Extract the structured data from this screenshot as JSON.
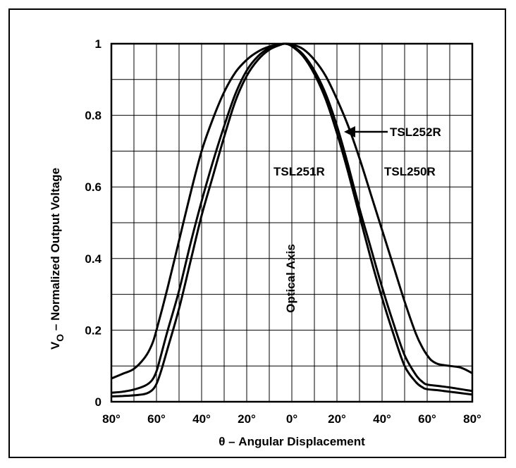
{
  "chart_data": {
    "type": "line",
    "xlabel": "θ – Angular Displacement",
    "ylabel_main": "V",
    "ylabel_sub": "O",
    "ylabel_rest": " – Normalized Output Voltage",
    "xlim": [
      -80,
      80
    ],
    "ylim": [
      0,
      1
    ],
    "x_ticks": [
      -80,
      -60,
      -40,
      -20,
      0,
      20,
      40,
      60,
      80
    ],
    "x_tick_labels": [
      "80°",
      "60°",
      "40°",
      "20°",
      "0°",
      "20°",
      "40°",
      "60°",
      "80°"
    ],
    "y_ticks": [
      0,
      0.2,
      0.4,
      0.6,
      0.8,
      1
    ],
    "y_tick_labels": [
      "0",
      "0.2",
      "0.4",
      "0.6",
      "0.8",
      "1"
    ],
    "grid": true,
    "annotations": {
      "optical_axis": "Optical Axis",
      "tsl252r": "TSL252R",
      "tsl251r": "TSL251R",
      "tsl250r": "TSL250R"
    },
    "series": [
      {
        "name": "TSL250R",
        "x": [
          -80,
          -75,
          -70,
          -65,
          -62,
          -60,
          -55,
          -50,
          -45,
          -40,
          -35,
          -30,
          -25,
          -20,
          -15,
          -10,
          -5,
          -3,
          0,
          5,
          10,
          15,
          20,
          25,
          30,
          35,
          40,
          45,
          50,
          55,
          58,
          60,
          62,
          65,
          70,
          75,
          80
        ],
        "y": [
          0.065,
          0.078,
          0.092,
          0.125,
          0.16,
          0.2,
          0.32,
          0.45,
          0.58,
          0.7,
          0.79,
          0.865,
          0.92,
          0.955,
          0.978,
          0.992,
          0.998,
          1.0,
          0.998,
          0.985,
          0.955,
          0.91,
          0.845,
          0.77,
          0.68,
          0.58,
          0.48,
          0.38,
          0.28,
          0.19,
          0.15,
          0.13,
          0.115,
          0.105,
          0.1,
          0.095,
          0.08
        ]
      },
      {
        "name": "TSL251R",
        "x": [
          -80,
          -75,
          -70,
          -65,
          -62,
          -60,
          -58,
          -55,
          -50,
          -45,
          -40,
          -35,
          -30,
          -25,
          -20,
          -15,
          -10,
          -5,
          -3,
          0,
          5,
          10,
          15,
          20,
          25,
          30,
          35,
          40,
          45,
          50,
          55,
          58,
          60,
          65,
          70,
          75,
          80
        ],
        "y": [
          0.025,
          0.028,
          0.034,
          0.045,
          0.06,
          0.085,
          0.13,
          0.2,
          0.31,
          0.44,
          0.56,
          0.67,
          0.77,
          0.86,
          0.925,
          0.965,
          0.988,
          0.998,
          1.0,
          0.995,
          0.97,
          0.925,
          0.86,
          0.77,
          0.66,
          0.54,
          0.43,
          0.32,
          0.22,
          0.13,
          0.075,
          0.055,
          0.048,
          0.044,
          0.04,
          0.035,
          0.03
        ]
      },
      {
        "name": "TSL252R",
        "x": [
          -80,
          -75,
          -70,
          -65,
          -62,
          -60,
          -58,
          -55,
          -50,
          -45,
          -40,
          -35,
          -30,
          -25,
          -20,
          -15,
          -10,
          -5,
          -3,
          0,
          5,
          10,
          15,
          20,
          25,
          30,
          35,
          40,
          45,
          50,
          55,
          58,
          60,
          65,
          70,
          75,
          80
        ],
        "y": [
          0.015,
          0.016,
          0.018,
          0.022,
          0.032,
          0.05,
          0.085,
          0.15,
          0.26,
          0.39,
          0.52,
          0.63,
          0.74,
          0.84,
          0.91,
          0.955,
          0.983,
          0.997,
          1.0,
          0.993,
          0.965,
          0.915,
          0.845,
          0.75,
          0.64,
          0.52,
          0.4,
          0.29,
          0.19,
          0.1,
          0.055,
          0.04,
          0.035,
          0.032,
          0.028,
          0.024,
          0.02
        ]
      }
    ]
  }
}
